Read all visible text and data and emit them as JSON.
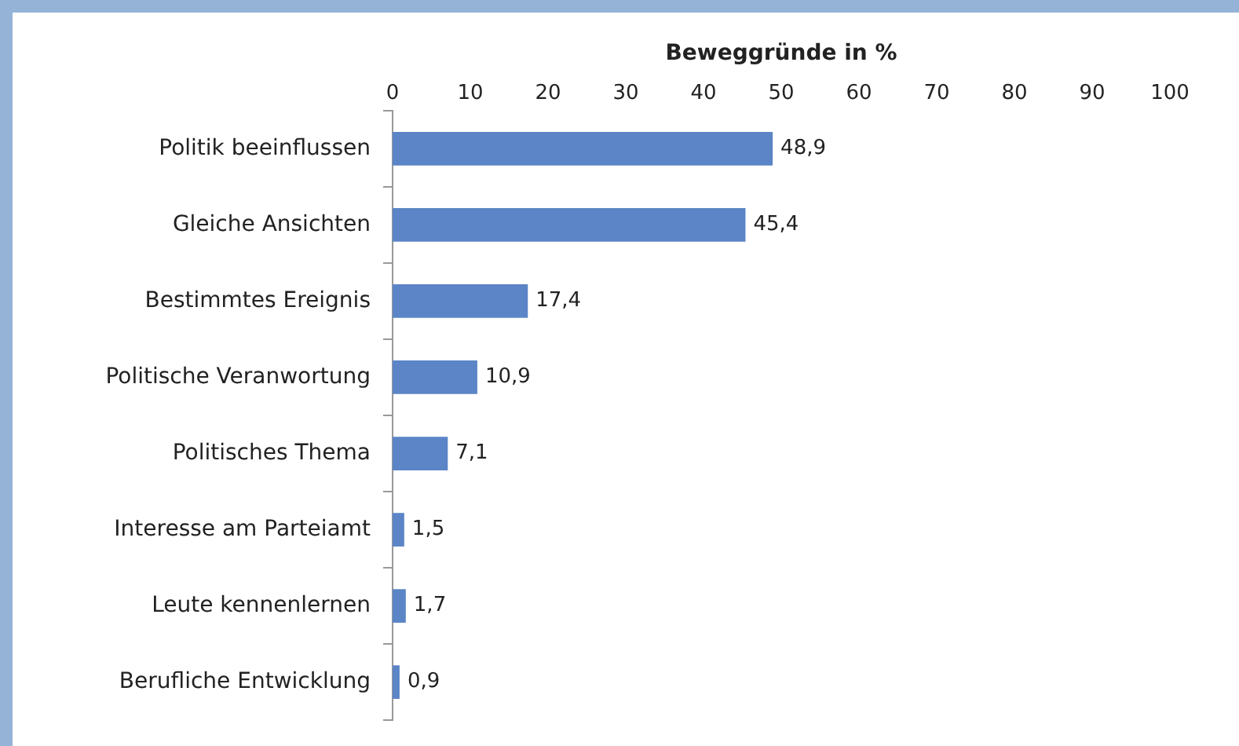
{
  "chart_data": {
    "type": "bar",
    "orientation": "horizontal",
    "xlabel": "Beweggründe in %",
    "categories": [
      "Politik beeinflussen",
      "Gleiche Ansichten",
      "Bestimmtes Ereignis",
      "Politische Veranwortung",
      "Politisches Thema",
      "Interesse am Parteiamt",
      "Leute kennenlernen",
      "Berufliche Entwicklung"
    ],
    "values": [
      48.9,
      45.4,
      17.4,
      10.9,
      7.1,
      1.5,
      1.7,
      0.9
    ],
    "value_labels": [
      "48,9",
      "45,4",
      "17,4",
      "10,9",
      "7,1",
      "1,5",
      "1,7",
      "0,9"
    ],
    "color": "#5b85c6",
    "xlim": [
      0,
      100
    ],
    "xticks": [
      0,
      10,
      20,
      30,
      40,
      50,
      60,
      70,
      80,
      90,
      100
    ],
    "grid": false,
    "legend": false
  }
}
